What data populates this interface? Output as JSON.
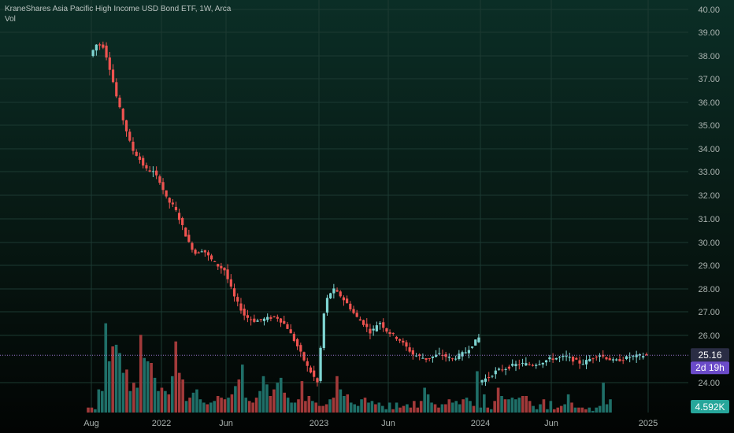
{
  "legend": {
    "title": "KraneShares Asia Pacific High Income USD Bond ETF, 1W, Arca",
    "indicator": "Vol"
  },
  "price_tag": {
    "value": "25.16",
    "countdown": "2d 19h",
    "color": "#2a2d44",
    "countdown_color": "#6b4bc9"
  },
  "volume_tag": {
    "value": "4.592K",
    "color": "#26a69a"
  },
  "colors": {
    "up": "#7fd6d3",
    "down": "#ef5350",
    "vol_up": "#1f6f68",
    "vol_down": "#a23a3a",
    "grid": "#1c3a32",
    "axis_text": "#aab3b0",
    "dotted_line": "#9575cd"
  },
  "chart_data": {
    "type": "candlestick",
    "title": "KraneShares Asia Pacific High Income USD Bond ETF, 1W, Arca",
    "timeframe": "1W",
    "price_axis": {
      "ticks": [
        "40.00",
        "39.00",
        "38.00",
        "37.00",
        "36.00",
        "35.00",
        "34.00",
        "33.00",
        "32.00",
        "31.00",
        "30.00",
        "29.00",
        "28.00",
        "27.00",
        "26.00",
        "24.00"
      ],
      "position": "right"
    },
    "time_axis": {
      "labels": [
        "Aug",
        "2022",
        "Jun",
        "2023",
        "Jun",
        "2024",
        "Jun",
        "2025"
      ]
    },
    "last_price": 25.16,
    "last_volume": "4.592K",
    "grid": true,
    "series": [
      {
        "name": "price",
        "segments": [
          {
            "from_label": 0,
            "to_label": 1,
            "points": [
              38.0,
              38.5,
              38.4,
              37.3,
              36.0,
              35.0,
              34.0,
              33.6,
              33.1,
              33.0,
              32.6
            ]
          },
          {
            "from_label": 1,
            "to_label": 2,
            "points": [
              32.6,
              31.8,
              31.5,
              30.8,
              30.0,
              29.5,
              29.7,
              29.3,
              29.0,
              28.8
            ]
          },
          {
            "from_label": 2,
            "to_label": 3,
            "points": [
              28.8,
              27.6,
              26.8,
              26.6,
              26.7,
              26.8,
              26.4,
              25.6,
              24.7,
              24.0
            ]
          },
          {
            "from_label": 3,
            "to_label": 4,
            "points": [
              24.0,
              27.4,
              28.0,
              27.7,
              27.3,
              26.8,
              26.5,
              26.1,
              26.6,
              26.2
            ]
          },
          {
            "from_label": 4,
            "to_label": 5,
            "points": [
              26.2,
              25.8,
              25.2,
              25.0,
              25.2,
              25.0,
              25.3,
              25.9
            ]
          },
          {
            "from_label": 5,
            "to_label": 6,
            "points": [
              24.05,
              24.2,
              24.5,
              24.6,
              24.75,
              24.8,
              24.75,
              24.85,
              25.0
            ]
          },
          {
            "from_label": 6,
            "to_label": 7,
            "points": [
              25.0,
              25.1,
              24.8,
              25.2,
              24.9,
              25.1,
              25.16
            ]
          }
        ]
      },
      {
        "name": "Vol",
        "values": [
          3,
          3,
          2,
          14,
          13,
          54,
          31,
          40,
          41,
          36,
          24,
          26,
          13,
          18,
          15,
          47,
          33,
          31,
          30,
          21,
          13,
          15,
          13,
          11,
          22,
          43,
          24,
          20,
          7,
          9,
          12,
          14,
          8,
          6,
          5,
          6,
          7,
          10,
          9,
          8,
          9,
          11,
          16,
          20,
          29,
          9,
          7,
          6,
          9,
          13,
          22,
          17,
          10,
          14,
          18,
          21,
          12,
          9,
          6,
          6,
          8,
          19,
          7,
          10,
          7,
          6,
          4,
          4,
          5,
          8,
          9,
          22,
          14,
          10,
          11,
          6,
          5,
          4,
          8,
          9,
          6,
          7,
          5,
          6,
          4,
          2,
          6,
          2,
          6,
          3,
          4,
          5,
          3,
          7,
          3,
          7,
          15,
          11,
          6,
          5,
          3,
          5,
          5,
          8,
          6,
          7,
          5,
          8,
          9,
          7,
          4,
          25,
          3,
          11,
          3,
          2,
          7,
          15,
          10,
          8,
          8,
          9,
          8,
          9,
          10,
          10,
          7,
          4,
          2,
          5,
          8,
          2,
          7,
          2,
          3,
          4,
          5,
          11,
          6,
          3,
          3,
          3,
          2,
          3,
          1,
          3,
          4,
          18,
          5,
          8
        ]
      }
    ]
  }
}
